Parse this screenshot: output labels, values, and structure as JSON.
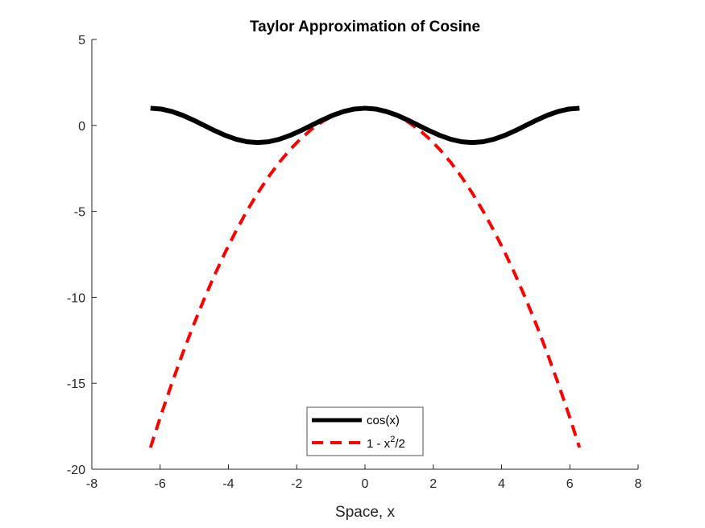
{
  "chart_data": {
    "type": "line",
    "title": "Taylor Approximation of Cosine",
    "xlabel": "Space, x",
    "ylabel": "",
    "xlim": [
      -8,
      8
    ],
    "ylim": [
      -20,
      5
    ],
    "xticks": [
      -8,
      -6,
      -4,
      -2,
      0,
      2,
      4,
      6,
      8
    ],
    "yticks": [
      -20,
      -15,
      -10,
      -5,
      0,
      5
    ],
    "grid": false,
    "legend_position": "bottom-center",
    "x": [
      -6.2832,
      -5.969,
      -5.6549,
      -5.3407,
      -5.0265,
      -4.7124,
      -4.3982,
      -4.0841,
      -3.7699,
      -3.4558,
      -3.1416,
      -2.8274,
      -2.5133,
      -2.1991,
      -1.885,
      -1.5708,
      -1.2566,
      -0.9425,
      -0.6283,
      -0.3142,
      0.0,
      0.3142,
      0.6283,
      0.9425,
      1.2566,
      1.5708,
      1.885,
      2.1991,
      2.5133,
      2.8274,
      3.1416,
      3.4558,
      3.7699,
      4.0841,
      4.3982,
      4.7124,
      5.0265,
      5.3407,
      5.6549,
      5.969,
      6.2832
    ],
    "series": [
      {
        "name": "cos(x)",
        "color": "#000000",
        "style": "solid",
        "values": [
          1.0,
          0.9511,
          0.809,
          0.5878,
          0.309,
          0.0,
          -0.309,
          -0.5878,
          -0.809,
          -0.9511,
          -1.0,
          -0.9511,
          -0.809,
          -0.5878,
          -0.309,
          0.0,
          0.309,
          0.5878,
          0.809,
          0.9511,
          1.0,
          0.9511,
          0.809,
          0.5878,
          0.309,
          0.0,
          -0.309,
          -0.5878,
          -0.809,
          -0.9511,
          -1.0,
          -0.9511,
          -0.809,
          -0.5878,
          -0.309,
          0.0,
          0.309,
          0.5878,
          0.809,
          0.9511,
          1.0
        ]
      },
      {
        "name": "1 - x²/2",
        "color": "#ff0000",
        "style": "dashed",
        "values": [
          -18.739,
          -16.815,
          -14.989,
          -13.262,
          -11.633,
          -10.103,
          -8.672,
          -7.34,
          -6.106,
          -4.971,
          -3.935,
          -2.997,
          -2.158,
          -1.418,
          -0.777,
          -0.234,
          0.21,
          0.556,
          0.803,
          0.951,
          1.0,
          0.951,
          0.803,
          0.556,
          0.21,
          -0.234,
          -0.777,
          -1.418,
          -2.158,
          -2.997,
          -3.935,
          -4.971,
          -6.106,
          -7.34,
          -8.672,
          -10.103,
          -11.633,
          -13.262,
          -14.989,
          -16.815,
          -18.739
        ]
      }
    ],
    "legend": {
      "entries": [
        {
          "label_main": "cos(x)",
          "label_sup": "",
          "label_tail": ""
        },
        {
          "label_main": "1 - x",
          "label_sup": "2",
          "label_tail": "/2"
        }
      ]
    }
  }
}
